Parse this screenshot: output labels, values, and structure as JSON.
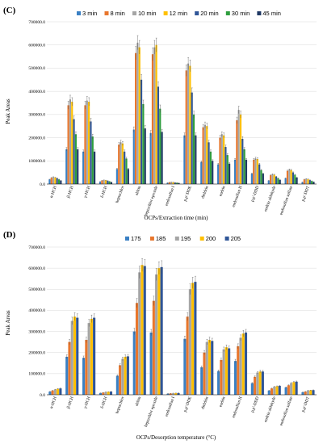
{
  "chart_data": [
    {
      "panel": "(C)",
      "type": "bar",
      "ylabel": "Peak Areas",
      "xlabel": "OCPs/Extraction time (min)",
      "ylim": [
        0,
        700000
      ],
      "yticks": [
        "0.0",
        "100000.0",
        "200000.0",
        "300000.0",
        "400000.0",
        "500000.0",
        "600000.0",
        "700000.0"
      ],
      "categories": [
        "α-HCH",
        "β-HCH",
        "γ-HCH",
        "δ-HCH",
        "heptachlor",
        "aldrin",
        "heptachlor epoxide",
        "endosulfan I",
        "p,p'-DDE",
        "dieldrin",
        "endrin",
        "endosulfan II",
        "p,p'-DDD",
        "endrin aldehyde",
        "endosulfan sulfate",
        "p,p'-DDT"
      ],
      "legend_position": "top",
      "series": [
        {
          "name": "3 min",
          "color": "#3a80c4",
          "values": [
            20000,
            150000,
            140000,
            10000,
            65000,
            235000,
            220000,
            5000,
            210000,
            95000,
            85000,
            105000,
            45000,
            15000,
            25000,
            8000
          ]
        },
        {
          "name": "8 min",
          "color": "#e8762c",
          "values": [
            27000,
            340000,
            340000,
            15000,
            170000,
            565000,
            560000,
            7000,
            490000,
            245000,
            200000,
            275000,
            105000,
            38000,
            57000,
            20000
          ]
        },
        {
          "name": "10 min",
          "color": "#a5a5a5",
          "values": [
            30000,
            365000,
            360000,
            17000,
            180000,
            610000,
            590000,
            8000,
            520000,
            255000,
            215000,
            320000,
            110000,
            42000,
            62000,
            22000
          ]
        },
        {
          "name": "12 min",
          "color": "#ffc000",
          "values": [
            28000,
            355000,
            355000,
            16000,
            175000,
            590000,
            600000,
            7500,
            510000,
            250000,
            210000,
            300000,
            108000,
            40000,
            60000,
            21000
          ]
        },
        {
          "name": "20 min",
          "color": "#2f5597",
          "values": [
            25000,
            280000,
            270000,
            14000,
            140000,
            450000,
            420000,
            6000,
            395000,
            180000,
            160000,
            195000,
            85000,
            32000,
            50000,
            17000
          ]
        },
        {
          "name": "30 min",
          "color": "#2e9e3e",
          "values": [
            20000,
            215000,
            205000,
            11000,
            110000,
            345000,
            325000,
            5000,
            300000,
            140000,
            125000,
            150000,
            60000,
            25000,
            40000,
            13000
          ]
        },
        {
          "name": "45 min",
          "color": "#1f3864",
          "values": [
            15000,
            150000,
            140000,
            8000,
            65000,
            240000,
            225000,
            4000,
            210000,
            100000,
            88000,
            105000,
            45000,
            18000,
            28000,
            9000
          ]
        }
      ]
    },
    {
      "panel": "(D)",
      "type": "bar",
      "ylabel": "Peak Areas",
      "xlabel": "OCPs/Desorption temperature (°C)",
      "ylim": [
        0,
        700000
      ],
      "yticks": [
        "0.0",
        "100000.0",
        "200000.0",
        "300000.0",
        "400000.0",
        "500000.0",
        "600000.0",
        "700000.0"
      ],
      "categories": [
        "α-HCH",
        "β-HCH",
        "γ-HCH",
        "δ-HCH",
        "heptachlor",
        "aldrin",
        "heptachlor epoxide",
        "endosulfan I",
        "p,p'-DDE",
        "dieldrin",
        "endrin",
        "endosulfan II",
        "p,p'-DDD",
        "endrin aldehyde",
        "endosulfan sulfate",
        "p,p'-DDT"
      ],
      "legend_position": "top",
      "series": [
        {
          "name": "175",
          "color": "#3a80c4",
          "values": [
            15000,
            180000,
            175000,
            8000,
            90000,
            300000,
            295000,
            5000,
            265000,
            130000,
            112000,
            160000,
            55000,
            20000,
            35000,
            12000
          ]
        },
        {
          "name": "185",
          "color": "#e8762c",
          "values": [
            20000,
            250000,
            260000,
            10000,
            140000,
            435000,
            445000,
            6000,
            370000,
            200000,
            165000,
            230000,
            85000,
            30000,
            45000,
            15000
          ]
        },
        {
          "name": "195",
          "color": "#a5a5a5",
          "values": [
            25000,
            350000,
            340000,
            13000,
            170000,
            580000,
            570000,
            7000,
            500000,
            250000,
            215000,
            270000,
            105000,
            38000,
            55000,
            20000
          ]
        },
        {
          "name": "200",
          "color": "#ffc000",
          "values": [
            28000,
            370000,
            360000,
            14000,
            180000,
            615000,
            600000,
            7500,
            530000,
            260000,
            225000,
            290000,
            110000,
            40000,
            60000,
            21000
          ]
        },
        {
          "name": "205",
          "color": "#2f5597",
          "values": [
            30000,
            365000,
            365000,
            15000,
            182000,
            610000,
            605000,
            8000,
            535000,
            255000,
            220000,
            295000,
            110000,
            42000,
            62000,
            22000
          ]
        }
      ]
    }
  ]
}
